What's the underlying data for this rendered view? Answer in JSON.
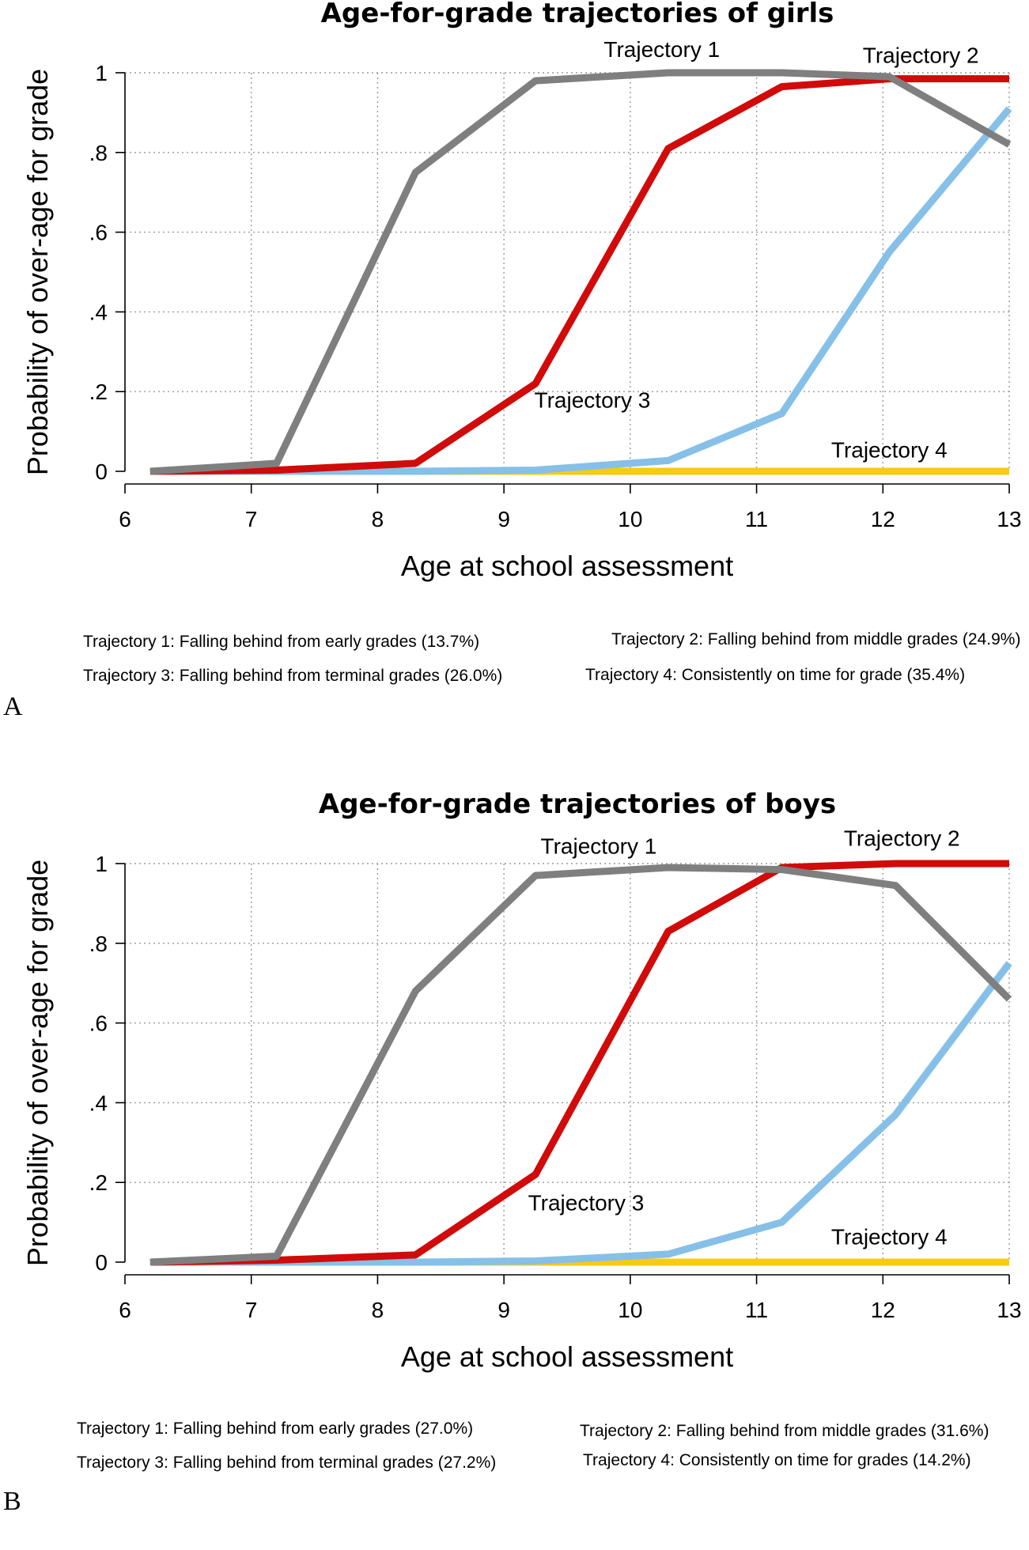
{
  "chart_data": [
    {
      "panel_label": "A",
      "type": "line",
      "title": "Age-for-grade trajectories of girls",
      "xlabel": "Age at school assessment",
      "ylabel": "Probability of over-age for grade",
      "xlim": [
        6,
        13
      ],
      "ylim": [
        0,
        1
      ],
      "x_ticks": [
        "6",
        "7",
        "8",
        "9",
        "10",
        "11",
        "12",
        "13"
      ],
      "y_ticks": [
        "0",
        ".2",
        ".4",
        ".6",
        ".8",
        "1"
      ],
      "grid": true,
      "series": [
        {
          "name": "Trajectory 1",
          "color": "#7f7f7f",
          "x": [
            6.2,
            7.2,
            8.3,
            9.25,
            10.3,
            11.2,
            12.05,
            13.0
          ],
          "y": [
            0.0,
            0.02,
            0.75,
            0.98,
            1.0,
            1.0,
            0.99,
            0.82
          ]
        },
        {
          "name": "Trajectory 2",
          "color": "#d10a0a",
          "x": [
            6.2,
            7.2,
            8.3,
            9.25,
            10.3,
            11.2,
            12.05,
            13.0
          ],
          "y": [
            0.0,
            0.003,
            0.02,
            0.22,
            0.81,
            0.965,
            0.985,
            0.985
          ]
        },
        {
          "name": "Trajectory 3",
          "color": "#86c0e8",
          "x": [
            6.2,
            7.2,
            8.3,
            9.25,
            10.3,
            11.2,
            12.05,
            13.0
          ],
          "y": [
            0.0,
            0.0,
            0.0,
            0.003,
            0.027,
            0.145,
            0.55,
            0.91
          ]
        },
        {
          "name": "Trajectory 4",
          "color": "#f7cb10",
          "x": [
            6.2,
            7.2,
            8.3,
            9.25,
            10.3,
            11.2,
            12.05,
            13.0
          ],
          "y": [
            0.0,
            0.0,
            0.0,
            0.0,
            0.0,
            0.0,
            0.0,
            0.0
          ]
        }
      ],
      "annotations": [
        {
          "text": "Trajectory 1",
          "x": 10.25,
          "y": 1.04
        },
        {
          "text": "Trajectory 2",
          "x": 12.3,
          "y": 1.025
        },
        {
          "text": "Trajectory 3",
          "x": 9.7,
          "y": 0.16
        },
        {
          "text": "Trajectory 4",
          "x": 12.05,
          "y": 0.035
        }
      ],
      "notes": [
        "Trajectory 1: Falling behind from early grades (13.7%)",
        "Trajectory 2: Falling behind from middle grades (24.9%)",
        "Trajectory 3: Falling behind from terminal grades (26.0%)",
        "Trajectory 4: Consistently on time for grade (35.4%)"
      ]
    },
    {
      "panel_label": "B",
      "type": "line",
      "title": "Age-for-grade trajectories of boys",
      "xlabel": "Age at school assessment",
      "ylabel": "Probability of over-age for grade",
      "xlim": [
        6,
        13
      ],
      "ylim": [
        0,
        1
      ],
      "x_ticks": [
        "6",
        "7",
        "8",
        "9",
        "10",
        "11",
        "12",
        "13"
      ],
      "y_ticks": [
        "0",
        ".2",
        ".4",
        ".6",
        ".8",
        "1"
      ],
      "grid": true,
      "series": [
        {
          "name": "Trajectory 1",
          "color": "#7f7f7f",
          "x": [
            6.2,
            7.2,
            8.3,
            9.25,
            10.3,
            11.2,
            12.1,
            13.0
          ],
          "y": [
            0.0,
            0.015,
            0.68,
            0.97,
            0.99,
            0.985,
            0.945,
            0.66
          ]
        },
        {
          "name": "Trajectory 2",
          "color": "#d10a0a",
          "x": [
            6.2,
            7.2,
            8.3,
            9.25,
            10.3,
            11.2,
            12.1,
            13.0
          ],
          "y": [
            0.0,
            0.005,
            0.018,
            0.22,
            0.83,
            0.99,
            1.0,
            1.0
          ]
        },
        {
          "name": "Trajectory 3",
          "color": "#86c0e8",
          "x": [
            6.2,
            7.2,
            8.3,
            9.25,
            10.3,
            11.2,
            12.1,
            13.0
          ],
          "y": [
            0.0,
            0.0,
            0.0,
            0.003,
            0.02,
            0.1,
            0.37,
            0.75
          ]
        },
        {
          "name": "Trajectory 4",
          "color": "#f7cb10",
          "x": [
            6.2,
            7.2,
            8.3,
            9.25,
            10.3,
            11.2,
            12.1,
            13.0
          ],
          "y": [
            0.0,
            0.0,
            0.0,
            0.0,
            0.0,
            0.0,
            0.0,
            0.0
          ]
        }
      ],
      "annotations": [
        {
          "text": "Trajectory 1",
          "x": 9.75,
          "y": 1.025
        },
        {
          "text": "Trajectory 2",
          "x": 12.15,
          "y": 1.045
        },
        {
          "text": "Trajectory 3",
          "x": 9.65,
          "y": 0.13
        },
        {
          "text": "Trajectory 4",
          "x": 12.05,
          "y": 0.045
        }
      ],
      "notes": [
        "Trajectory 1: Falling behind from early grades (27.0%)",
        "Trajectory 2: Falling behind from middle grades (31.6%)",
        "Trajectory 3: Falling behind from terminal grades (27.2%)",
        "Trajectory 4: Consistently on time for grades (14.2%)"
      ]
    }
  ]
}
